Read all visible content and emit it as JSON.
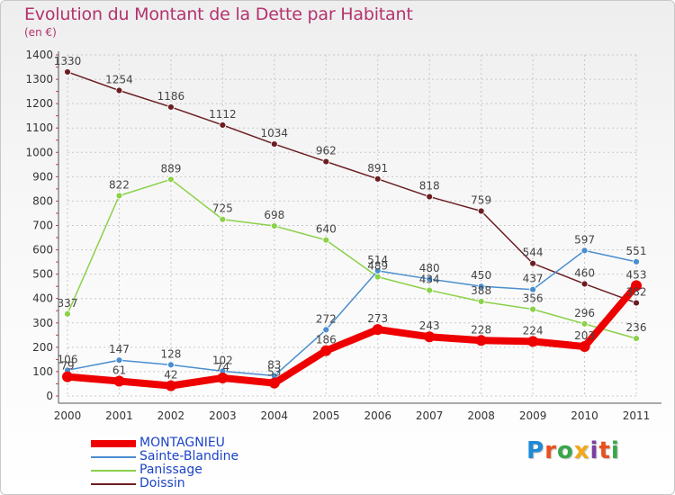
{
  "header": {
    "title": "Evolution du Montant de la Dette par Habitant",
    "unit": "(en €)"
  },
  "logo": {
    "letters": [
      "P",
      "r",
      "o",
      "x",
      "i",
      "t",
      "i"
    ],
    "colors": [
      "#1f8ad6",
      "#e8501e",
      "#3aa64b",
      "#f3a81a",
      "#7b3ea0",
      "#e8501e",
      "#3aa64b"
    ]
  },
  "chart_data": {
    "type": "line",
    "title": "Evolution du Montant de la Dette par Habitant",
    "xlabel": "",
    "ylabel": "(en €)",
    "ylim": [
      0,
      1400
    ],
    "yticks": [
      "0",
      "100",
      "200",
      "300",
      "400",
      "500",
      "600",
      "700",
      "800",
      "900",
      "1000",
      "1100",
      "1200",
      "1300",
      "1400"
    ],
    "x": [
      "2000",
      "2001",
      "2002",
      "2003",
      "2004",
      "2005",
      "2006",
      "2007",
      "2008",
      "2009",
      "2010",
      "2011"
    ],
    "grid": true,
    "legend_position": "bottom-left",
    "series": [
      {
        "name": "Doissin",
        "color": "#6b1e22",
        "values": [
          1330,
          1254,
          1186,
          1112,
          1034,
          962,
          891,
          818,
          759,
          544,
          460,
          382
        ],
        "labels": [
          "1330",
          "1254",
          "1186",
          "1112",
          "1034",
          "962",
          "891",
          "818",
          "759",
          "544",
          "460",
          "382"
        ]
      },
      {
        "name": "Panissage",
        "color": "#8bd14a",
        "values": [
          337,
          822,
          889,
          725,
          698,
          640,
          489,
          434,
          388,
          356,
          296,
          236
        ],
        "labels": [
          "337",
          "822",
          "889",
          "725",
          "698",
          "640",
          "489",
          "434",
          "388",
          "356",
          "296",
          "236"
        ]
      },
      {
        "name": "Sainte-Blandine",
        "color": "#4a8ed0",
        "values": [
          106,
          147,
          128,
          102,
          83,
          272,
          514,
          480,
          450,
          437,
          597,
          551
        ],
        "labels": [
          "106",
          "147",
          "128",
          "102",
          "83",
          "272",
          "514",
          "480",
          "450",
          "437",
          "597",
          "551"
        ]
      },
      {
        "name": "MONTAGNIEU",
        "color": "#ee0000",
        "values": [
          79,
          61,
          42,
          74,
          53,
          186,
          273,
          243,
          228,
          224,
          203,
          453
        ],
        "labels": [
          "79",
          "61",
          "42",
          "74",
          "53",
          "186",
          "273",
          "243",
          "228",
          "224",
          "203",
          "453"
        ]
      }
    ],
    "legend_order": [
      "MONTAGNIEU",
      "Sainte-Blandine",
      "Panissage",
      "Doissin"
    ]
  }
}
